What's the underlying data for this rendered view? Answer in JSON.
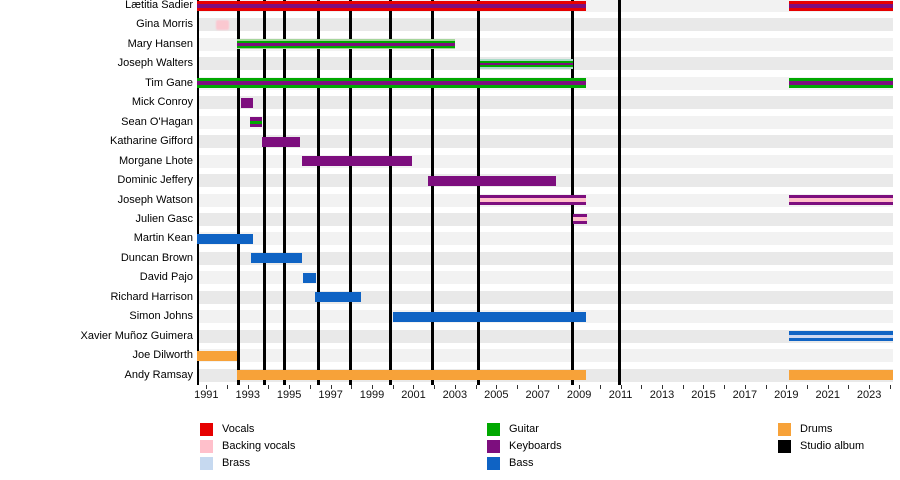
{
  "chart_data": {
    "type": "timeline",
    "description": "Band members timeline with roles shown as colored stripes and studio albums as black vertical lines",
    "x_axis": {
      "start": 1990.55,
      "end": 2024.15,
      "minor_tick_first": 1991,
      "minor_tick_last": 2024,
      "tick_labels": [
        "1991",
        "1993",
        "1995",
        "1997",
        "1999",
        "2001",
        "2003",
        "2005",
        "2007",
        "2009",
        "2011",
        "2013",
        "2015",
        "2017",
        "2019",
        "2021",
        "2023"
      ],
      "label_first_year": 1991,
      "label_step": 2
    },
    "role_colors": {
      "Vocals": "#e60000",
      "Backing vocals": "#ffc0cb",
      "Brass": "#c6d9f0",
      "Guitar": "#00a800",
      "Keyboards": "#7d0e7e",
      "Bass": "#0f63c4",
      "Drums": "#f7a239",
      "Studio album": "#000000"
    },
    "members": [
      {
        "name": "Lætitia Sadier",
        "roles": [
          "Vocals",
          "Keyboards"
        ],
        "stripes": [
          [
            "#e60000",
            3
          ],
          [
            "#7d0e7e",
            4
          ],
          [
            "#e60000",
            3
          ]
        ],
        "segments": [
          [
            1990.55,
            2009.35
          ],
          [
            2019.15,
            2024.15
          ]
        ]
      },
      {
        "name": "Gina Morris",
        "roles": [
          "Backing vocals"
        ],
        "soft": true,
        "stripes": [
          [
            "#ffc0cb",
            10
          ]
        ],
        "segments": [
          [
            1991.45,
            1992.1
          ]
        ]
      },
      {
        "name": "Mary Hansen",
        "roles": [
          "Guitar",
          "Keyboards"
        ],
        "stripes": [
          [
            "#a6d69c",
            1.5
          ],
          [
            "#00a800",
            2
          ],
          [
            "#7d0e7e",
            3
          ],
          [
            "#00a800",
            2
          ],
          [
            "#a6d69c",
            1.5
          ]
        ],
        "segments": [
          [
            1992.5,
            2003.0
          ]
        ]
      },
      {
        "name": "Joseph Walters",
        "roles": [
          "Brass",
          "Guitar",
          "Keyboards"
        ],
        "stripes": [
          [
            "#abdcc9",
            2
          ],
          [
            "#00a800",
            2
          ],
          [
            "#7d0e7e",
            2
          ],
          [
            "#00a800",
            2
          ],
          [
            "#abdcc9",
            2
          ]
        ],
        "segments": [
          [
            2004.2,
            2008.7
          ]
        ]
      },
      {
        "name": "Tim Gane",
        "roles": [
          "Guitar",
          "Keyboards"
        ],
        "stripes": [
          [
            "#00a800",
            3
          ],
          [
            "#7d0e7e",
            4
          ],
          [
            "#00a800",
            3
          ]
        ],
        "segments": [
          [
            1990.55,
            2009.35
          ],
          [
            2019.15,
            2024.15
          ]
        ]
      },
      {
        "name": "Mick Conroy",
        "roles": [
          "Keyboards"
        ],
        "stripes": [
          [
            "#7d0e7e",
            10
          ]
        ],
        "segments": [
          [
            1992.65,
            1993.25
          ]
        ]
      },
      {
        "name": "Sean O'Hagan",
        "roles": [
          "Keyboards",
          "Guitar"
        ],
        "stripes": [
          [
            "#7d0e7e",
            3.5
          ],
          [
            "#00a800",
            3
          ],
          [
            "#7d0e7e",
            3.5
          ]
        ],
        "segments": [
          [
            1993.1,
            1993.7
          ]
        ]
      },
      {
        "name": "Katharine Gifford",
        "roles": [
          "Keyboards"
        ],
        "stripes": [
          [
            "#7d0e7e",
            10
          ]
        ],
        "segments": [
          [
            1993.7,
            1995.5
          ]
        ]
      },
      {
        "name": "Morgane Lhote",
        "roles": [
          "Keyboards"
        ],
        "stripes": [
          [
            "#7d0e7e",
            10
          ]
        ],
        "segments": [
          [
            1995.6,
            2000.95
          ]
        ]
      },
      {
        "name": "Dominic Jeffery",
        "roles": [
          "Keyboards"
        ],
        "stripes": [
          [
            "#7d0e7e",
            10
          ]
        ],
        "segments": [
          [
            2001.7,
            2007.9
          ]
        ]
      },
      {
        "name": "Joseph Watson",
        "roles": [
          "Keyboards",
          "Backing vocals"
        ],
        "stripes": [
          [
            "#7d0e7e",
            3
          ],
          [
            "#ffc0cb",
            3.5
          ],
          [
            "#7d0e7e",
            3.5
          ]
        ],
        "segments": [
          [
            2004.2,
            2009.35
          ],
          [
            2019.15,
            2024.15
          ]
        ]
      },
      {
        "name": "Julien Gasc",
        "roles": [
          "Keyboards",
          "Backing vocals"
        ],
        "stripes": [
          [
            "#7d0e7e",
            3
          ],
          [
            "#ffc0cb",
            3.5
          ],
          [
            "#7d0e7e",
            3.5
          ]
        ],
        "segments": [
          [
            2008.7,
            2009.4
          ]
        ]
      },
      {
        "name": "Martin Kean",
        "roles": [
          "Bass"
        ],
        "stripes": [
          [
            "#0f63c4",
            10
          ]
        ],
        "segments": [
          [
            1990.55,
            1993.25
          ]
        ]
      },
      {
        "name": "Duncan Brown",
        "roles": [
          "Bass"
        ],
        "stripes": [
          [
            "#0f63c4",
            10
          ]
        ],
        "segments": [
          [
            1993.15,
            1995.6
          ]
        ]
      },
      {
        "name": "David Pajo",
        "roles": [
          "Bass"
        ],
        "stripes": [
          [
            "#0f63c4",
            10
          ]
        ],
        "segments": [
          [
            1995.65,
            1996.3
          ]
        ]
      },
      {
        "name": "Richard Harrison",
        "roles": [
          "Bass"
        ],
        "stripes": [
          [
            "#0f63c4",
            10
          ]
        ],
        "segments": [
          [
            1996.25,
            1998.45
          ]
        ]
      },
      {
        "name": "Simon Johns",
        "roles": [
          "Bass"
        ],
        "stripes": [
          [
            "#0f63c4",
            10
          ]
        ],
        "segments": [
          [
            2000.0,
            2009.35
          ]
        ]
      },
      {
        "name": "Xavier Muñoz Guimera",
        "roles": [
          "Bass",
          "Brass"
        ],
        "stripes": [
          [
            "#0f63c4",
            3.5
          ],
          [
            "#ccd6f0",
            3
          ],
          [
            "#0f63c4",
            3.5
          ]
        ],
        "segments": [
          [
            2019.15,
            2024.15
          ]
        ]
      },
      {
        "name": "Joe Dilworth",
        "roles": [
          "Drums"
        ],
        "stripes": [
          [
            "#f7a239",
            10
          ]
        ],
        "segments": [
          [
            1990.55,
            1992.5
          ]
        ]
      },
      {
        "name": "Andy Ramsay",
        "roles": [
          "Drums"
        ],
        "stripes": [
          [
            "#f7a239",
            10
          ]
        ],
        "segments": [
          [
            1992.5,
            2009.35
          ],
          [
            2019.15,
            2024.15
          ]
        ]
      }
    ],
    "albums": [
      1992.55,
      1993.8,
      1994.75,
      1996.4,
      1997.95,
      1999.9,
      2001.9,
      2004.15,
      2008.7,
      2010.95
    ],
    "legend": [
      {
        "label": "Vocals",
        "color": "#e60000",
        "col": 0,
        "row": 0
      },
      {
        "label": "Backing vocals",
        "color": "#ffc0cb",
        "col": 0,
        "row": 1
      },
      {
        "label": "Brass",
        "color": "#c6d9f0",
        "col": 0,
        "row": 2
      },
      {
        "label": "Guitar",
        "color": "#00a800",
        "col": 1,
        "row": 0
      },
      {
        "label": "Keyboards",
        "color": "#7d0e7e",
        "col": 1,
        "row": 1
      },
      {
        "label": "Bass",
        "color": "#0f63c4",
        "col": 1,
        "row": 2
      },
      {
        "label": "Drums",
        "color": "#f7a239",
        "col": 2,
        "row": 0
      },
      {
        "label": "Studio album",
        "color": "#000000",
        "col": 2,
        "row": 1
      }
    ]
  }
}
